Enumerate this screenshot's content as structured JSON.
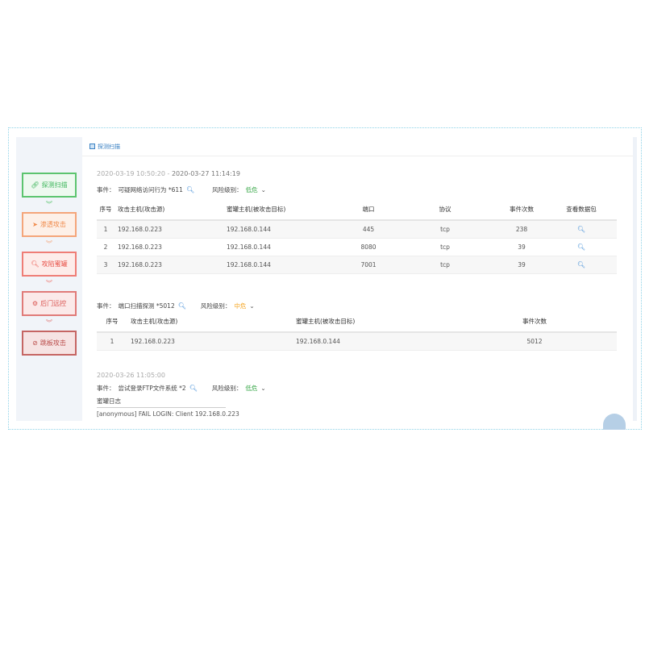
{
  "sidebar": {
    "steps": [
      {
        "label": "探测扫描",
        "icon": "link-icon",
        "color": "#3cb55a"
      },
      {
        "label": "渗透攻击",
        "icon": "paper-plane-icon",
        "color": "#f08a4b"
      },
      {
        "label": "攻陷蜜罐",
        "icon": "search-icon",
        "color": "#e8534a"
      },
      {
        "label": "后门远控",
        "icon": "cogs-icon",
        "color": "#d9534f"
      },
      {
        "label": "跳板攻击",
        "icon": "ban-icon",
        "color": "#b94a48"
      }
    ]
  },
  "header": {
    "title": "探测扫描"
  },
  "sections": [
    {
      "time_start": "2020-03-19 10:50:20",
      "sep": " - ",
      "time_end": "2020-03-27 11:14:19",
      "event_label": "事件：",
      "event": "可疑网络访问行为 *611",
      "risk_label": "风险级别：",
      "risk": "低危",
      "columns": [
        "序号",
        "攻击主机(攻击源)",
        "蜜罐主机(被攻击目标)",
        "端口",
        "协议",
        "事件次数",
        "查看数据包"
      ],
      "rows": [
        [
          "1",
          "192.168.0.223",
          "192.168.0.144",
          "445",
          "tcp",
          "238"
        ],
        [
          "2",
          "192.168.0.223",
          "192.168.0.144",
          "8080",
          "tcp",
          "39"
        ],
        [
          "3",
          "192.168.0.223",
          "192.168.0.144",
          "7001",
          "tcp",
          "39"
        ]
      ]
    },
    {
      "event_label": "事件：",
      "event": "端口扫描探测 *5012",
      "risk_label": "风险级别：",
      "risk": "中危",
      "columns": [
        "序号",
        "攻击主机(攻击源)",
        "蜜罐主机(被攻击目标)",
        "事件次数"
      ],
      "rows": [
        [
          "1",
          "192.168.0.223",
          "192.168.0.144",
          "5012"
        ]
      ]
    },
    {
      "time_start": "2020-03-26 11:05:00",
      "event_label": "事件：",
      "event": "尝试登录FTP文件系统 *2",
      "risk_label": "风险级别：",
      "risk": "低危",
      "log_title": "蜜罐日志",
      "log_line": "[anonymous] FAIL LOGIN: Client 192.168.0.223"
    }
  ],
  "arrow": "︾"
}
